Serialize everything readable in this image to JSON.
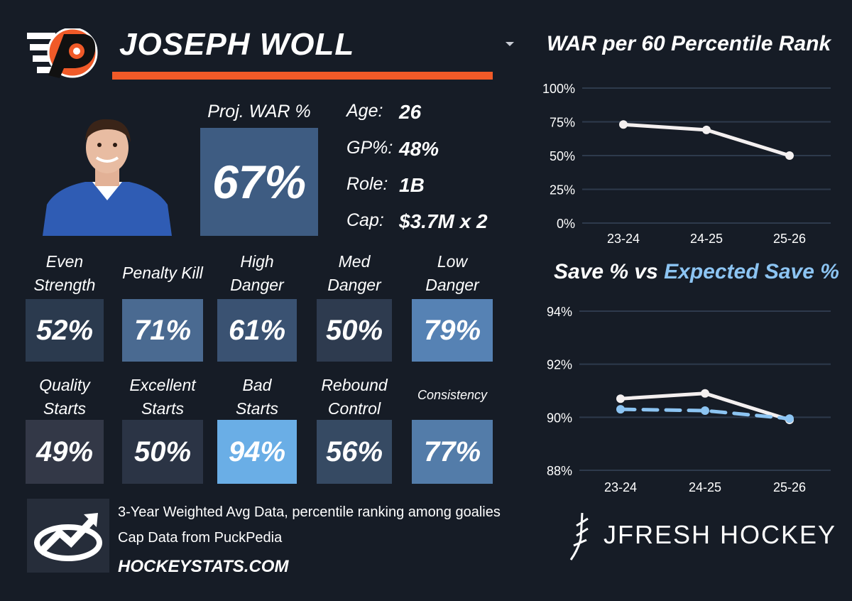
{
  "header": {
    "player_name": "JOSEPH WOLL",
    "team_logo_icon": "flyers-logo-icon",
    "dropdown_icon": "chevron-down-icon"
  },
  "proj_war": {
    "label": "Proj. WAR %",
    "value": "67%"
  },
  "info": [
    {
      "label": "Age:",
      "value": "26"
    },
    {
      "label": "GP%:",
      "value": "48%"
    },
    {
      "label": "Role:",
      "value": "1B"
    },
    {
      "label": "Cap:",
      "value": "$3.7M x 2"
    }
  ],
  "tiles_row1": [
    {
      "label_lines": [
        "Even",
        "Strength"
      ],
      "value": "52%",
      "color": "#2b3a4e"
    },
    {
      "label_lines": [
        "Penalty Kill"
      ],
      "value": "71%",
      "color": "#4a6a91"
    },
    {
      "label_lines": [
        "High",
        "Danger"
      ],
      "value": "61%",
      "color": "#3a5272"
    },
    {
      "label_lines": [
        "Med",
        "Danger"
      ],
      "value": "50%",
      "color": "#2e3b4f"
    },
    {
      "label_lines": [
        "Low",
        "Danger"
      ],
      "value": "79%",
      "color": "#5682b4"
    }
  ],
  "tiles_row2": [
    {
      "label_lines": [
        "Quality",
        "Starts"
      ],
      "value": "49%",
      "color": "#333847"
    },
    {
      "label_lines": [
        "Excellent",
        "Starts"
      ],
      "value": "50%",
      "color": "#2b3445"
    },
    {
      "label_lines": [
        "Bad",
        "Starts"
      ],
      "value": "94%",
      "color": "#6aaee6"
    },
    {
      "label_lines": [
        "Rebound",
        "Control"
      ],
      "value": "56%",
      "color": "#364a63"
    },
    {
      "label_lines": [
        "Consistency"
      ],
      "value": "77%",
      "color": "#537ca9"
    }
  ],
  "footer": {
    "line1": "3-Year Weighted Avg Data, percentile ranking among goalies",
    "line2": "Cap Data from PuckPedia",
    "site": "HOCKEYSTATS.COM",
    "hs_logo_icon": "hockeystats-logo-icon"
  },
  "brand": {
    "text": "JFRESH HOCKEY",
    "icon": "jfresh-logo-icon"
  },
  "chart_data": [
    {
      "type": "line",
      "title": "WAR per 60 Percentile Rank",
      "categories": [
        "23-24",
        "24-25",
        "25-26"
      ],
      "series": [
        {
          "values": [
            73,
            69,
            50
          ],
          "color": "#f4f0f0"
        }
      ],
      "ylim": [
        0,
        100
      ],
      "yticks": [
        "0%",
        "25%",
        "50%",
        "75%",
        "100%"
      ],
      "ytick_values": [
        0,
        25,
        50,
        75,
        100
      ],
      "grid": true
    },
    {
      "type": "line",
      "title_parts": [
        "Save % vs ",
        "Expected Save %"
      ],
      "title_colors": [
        "#ffffff",
        "#8cc4f2"
      ],
      "categories": [
        "23-24",
        "24-25",
        "25-26"
      ],
      "series": [
        {
          "name": "Save %",
          "values": [
            90.7,
            90.9,
            89.9
          ],
          "color": "#f4f0f0",
          "dash": false
        },
        {
          "name": "Expected Save %",
          "values": [
            90.3,
            90.25,
            89.95
          ],
          "color": "#8cc4f2",
          "dash": true
        }
      ],
      "ylim": [
        88,
        94
      ],
      "yticks": [
        "88%",
        "90%",
        "92%",
        "94%"
      ],
      "ytick_values": [
        88,
        90,
        92,
        94
      ],
      "grid": true
    }
  ]
}
